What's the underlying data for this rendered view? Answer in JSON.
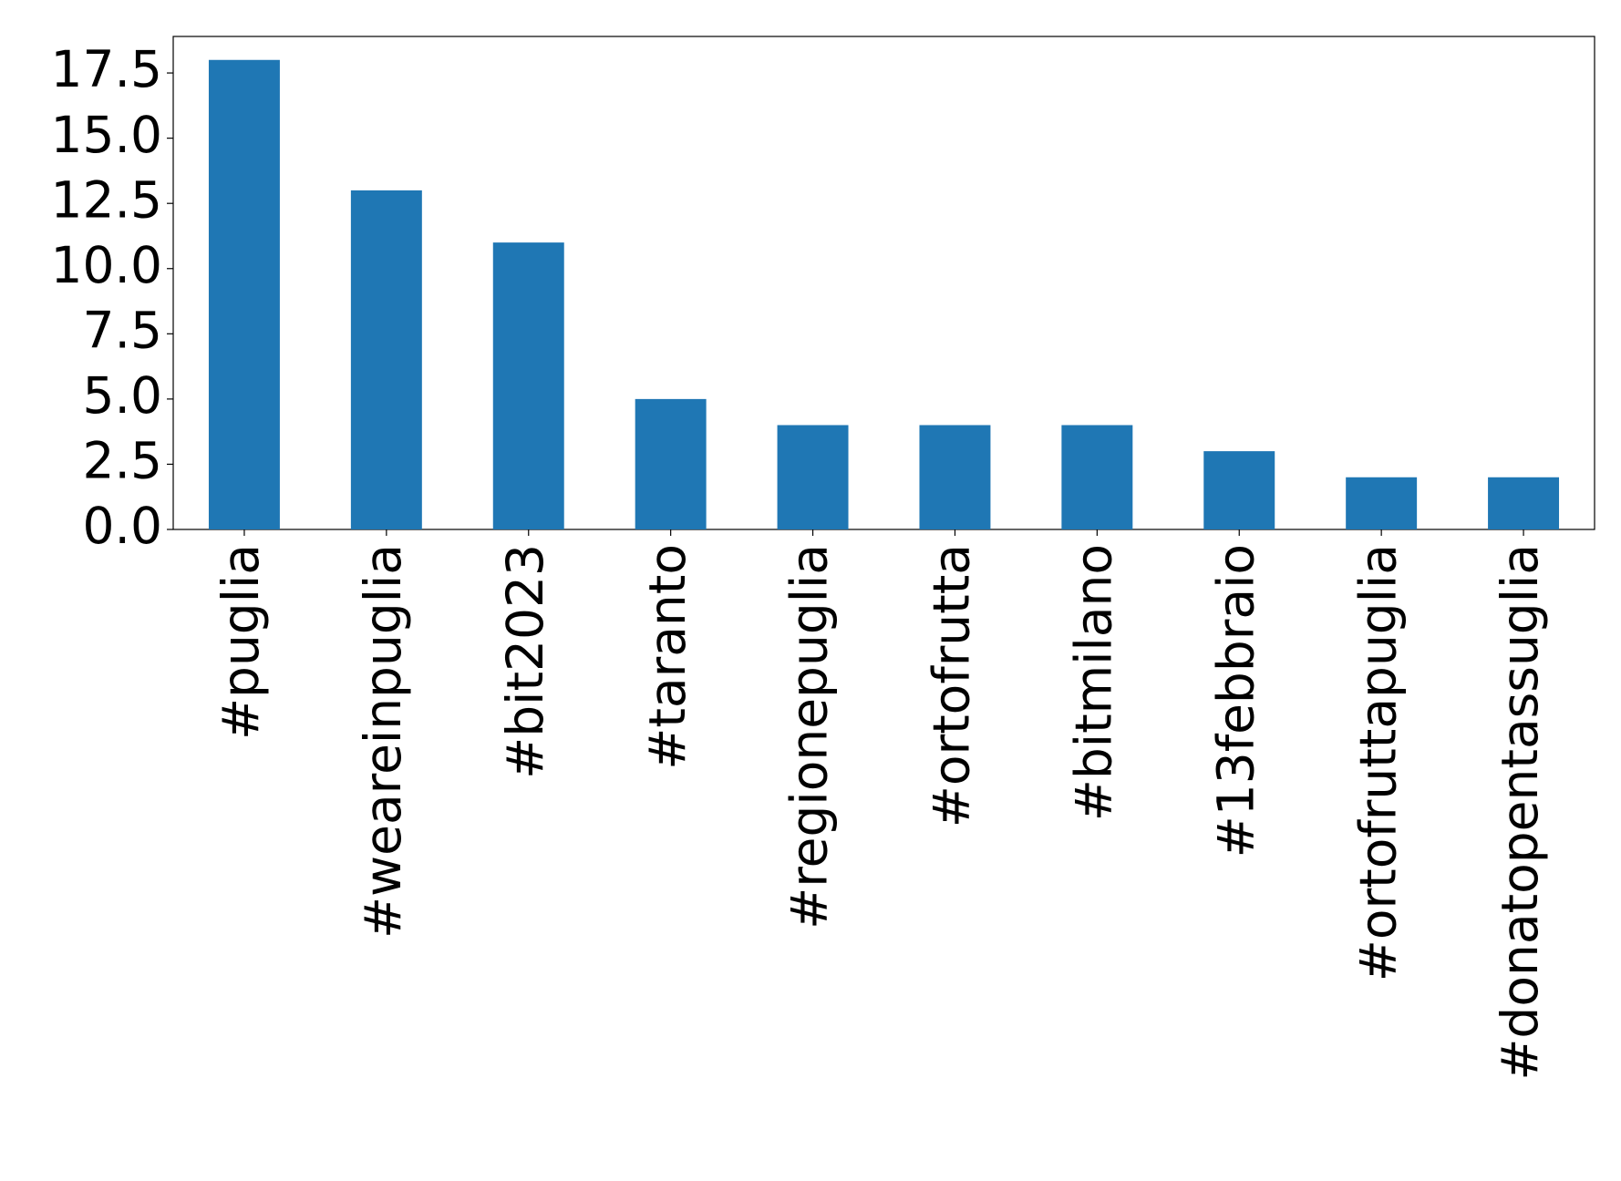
{
  "chart_data": {
    "type": "bar",
    "categories": [
      "#puglia",
      "#weareinpuglia",
      "#bit2023",
      "#taranto",
      "#regionepuglia",
      "#ortofrutta",
      "#bitmilano",
      "#13febbraio",
      "#ortofruttapuglia",
      "#donatopentassuglia"
    ],
    "values": [
      18,
      13,
      11,
      5,
      4,
      4,
      4,
      3,
      2,
      2
    ],
    "color": "#1f77b4",
    "ylim": [
      0,
      18.9
    ],
    "yticks": [
      {
        "value": 0,
        "label": "0.0"
      },
      {
        "value": 2.5,
        "label": "2.5"
      },
      {
        "value": 5,
        "label": "5.0"
      },
      {
        "value": 7.5,
        "label": "7.5"
      },
      {
        "value": 10,
        "label": "10.0"
      },
      {
        "value": 12.5,
        "label": "12.5"
      },
      {
        "value": 15,
        "label": "15.0"
      },
      {
        "value": 17.5,
        "label": "17.5"
      }
    ],
    "grid": false
  }
}
